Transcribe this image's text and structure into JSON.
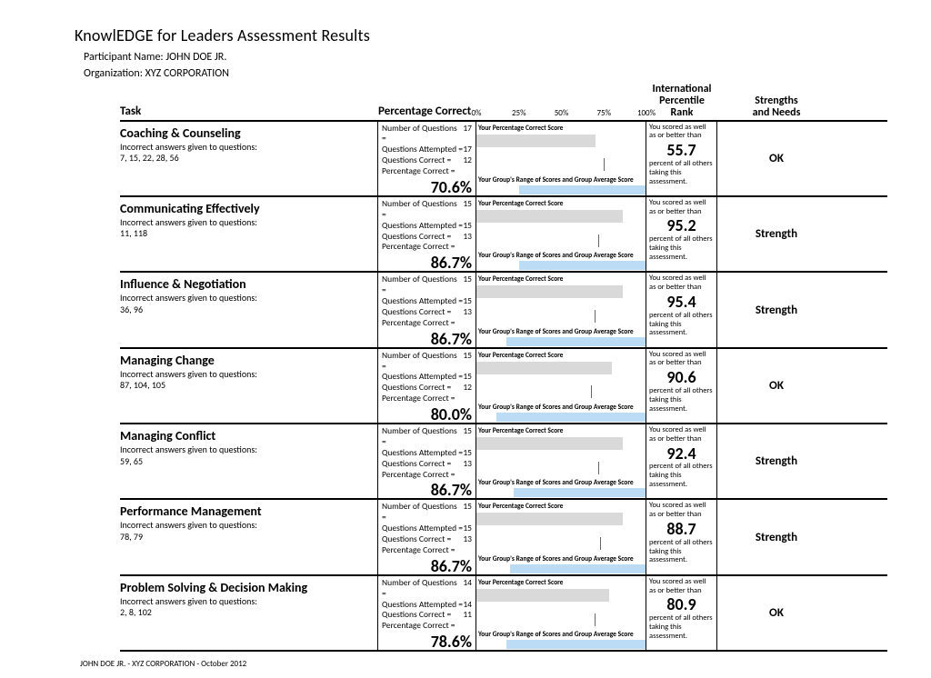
{
  "report_title": "KnowlEDGE for Leaders Assessment Results",
  "participant_label": "Participant Name:",
  "participant_name": "JOHN DOE JR.",
  "organization_label": "Organization:",
  "organization_name": "XYZ CORPORATION",
  "header": {
    "task": "Task",
    "percentage": "Percentage Correct",
    "intl_line1": "International",
    "intl_line2": "Percentile",
    "intl_line3": "Rank",
    "sn_line1": "Strengths",
    "sn_line2": "and Needs"
  },
  "axis": {
    "ticks": [
      {
        "label": "0%",
        "pos": 0
      },
      {
        "label": "25%",
        "pos": 25
      },
      {
        "label": "50%",
        "pos": 50
      },
      {
        "label": "75%",
        "pos": 75
      },
      {
        "label": "100%",
        "pos": 100
      }
    ]
  },
  "stat_labels": {
    "nq": "Number of Questions =",
    "qa": "Questions Attempted =",
    "qc": "Questions Correct =",
    "pc": "Percentage Correct ="
  },
  "chart_labels": {
    "your": "Your Percentage Correct Score",
    "group": "Your Group's Range of Scores and Group Average Score"
  },
  "rank_text": {
    "top": "You scored as well as or better than",
    "bot": "percent of all others taking this assessment."
  },
  "colors": {
    "score_bar": "#d9d9d9",
    "group_bar": "#bcdcf5",
    "tick": "#666666"
  },
  "rows": [
    {
      "name": "Coaching & Counseling",
      "sub": "Incorrect answers given to questions:",
      "q": "7, 15, 22, 28, 56",
      "nq": "17",
      "qa": "17",
      "qc": "12",
      "pct": "70.6%",
      "score_pct": 70.6,
      "group_start": 25,
      "group_end": 100,
      "group_avg": 75,
      "rank": "55.7",
      "sn": "OK"
    },
    {
      "name": "Communicating Effectively",
      "sub": "Incorrect answers given to questions:",
      "q": "11, 118",
      "nq": "15",
      "qa": "15",
      "qc": "13",
      "pct": "86.7%",
      "score_pct": 86.7,
      "group_start": 25,
      "group_end": 100,
      "group_avg": 72,
      "rank": "95.2",
      "sn": "Strength"
    },
    {
      "name": "Influence & Negotiation",
      "sub": "Incorrect answers given to questions:",
      "q": "36, 96",
      "nq": "15",
      "qa": "15",
      "qc": "13",
      "pct": "86.7%",
      "score_pct": 86.7,
      "group_start": 18,
      "group_end": 100,
      "group_avg": 70,
      "rank": "95.4",
      "sn": "Strength"
    },
    {
      "name": "Managing Change",
      "sub": "Incorrect answers given to questions:",
      "q": "87, 104, 105",
      "nq": "15",
      "qa": "15",
      "qc": "12",
      "pct": "80.0%",
      "score_pct": 80.0,
      "group_start": 12,
      "group_end": 100,
      "group_avg": 68,
      "rank": "90.6",
      "sn": "OK"
    },
    {
      "name": "Managing Conflict",
      "sub": "Incorrect answers given to questions:",
      "q": "59, 65",
      "nq": "15",
      "qa": "15",
      "qc": "13",
      "pct": "86.7%",
      "score_pct": 86.7,
      "group_start": 22,
      "group_end": 100,
      "group_avg": 72,
      "rank": "92.4",
      "sn": "Strength"
    },
    {
      "name": "Performance Management",
      "sub": "Incorrect answers given to questions:",
      "q": "78, 79",
      "nq": "15",
      "qa": "15",
      "qc": "13",
      "pct": "86.7%",
      "score_pct": 86.7,
      "group_start": 20,
      "group_end": 100,
      "group_avg": 73,
      "rank": "88.7",
      "sn": "Strength"
    },
    {
      "name": "Problem Solving & Decision Making",
      "sub": "Incorrect answers given to questions:",
      "q": "2, 8, 102",
      "nq": "14",
      "qa": "14",
      "qc": "11",
      "pct": "78.6%",
      "score_pct": 78.6,
      "group_start": 18,
      "group_end": 100,
      "group_avg": 70,
      "rank": "80.9",
      "sn": "OK"
    }
  ],
  "footer": "JOHN DOE JR. - XYZ CORPORATION - October 2012"
}
